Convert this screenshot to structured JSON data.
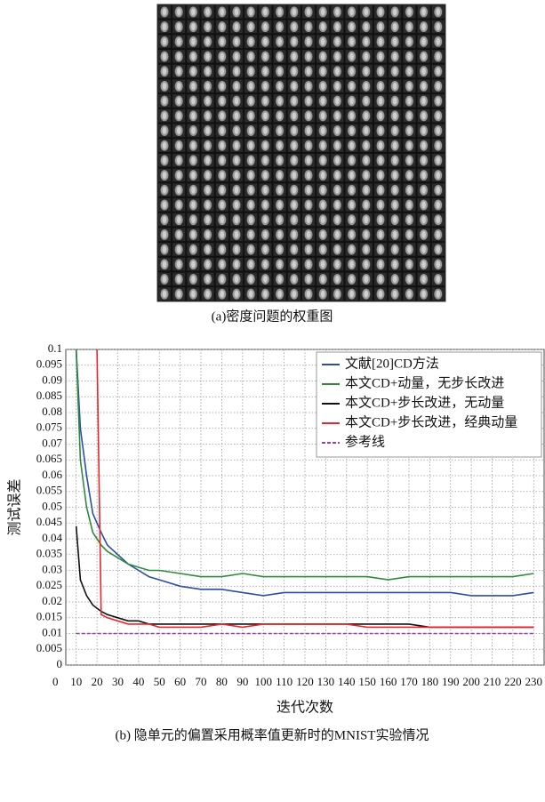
{
  "figure_a": {
    "caption": "(a)密度问题的权重图"
  },
  "chart_data": {
    "type": "line",
    "caption": "(b) 隐单元的偏置采用概率值更新时的MNIST实验情况",
    "x_label": "迭代次数",
    "y_label": "测试误差",
    "x": [
      10,
      12,
      15,
      18,
      20,
      22,
      25,
      30,
      35,
      40,
      45,
      50,
      60,
      70,
      80,
      90,
      100,
      110,
      120,
      130,
      140,
      150,
      160,
      170,
      180,
      190,
      200,
      210,
      220,
      230
    ],
    "series": [
      {
        "name": "文献[20]CD方法",
        "color": "#2b4ea8",
        "values": [
          0.1,
          0.075,
          0.06,
          0.048,
          0.045,
          0.042,
          0.038,
          0.035,
          0.032,
          0.03,
          0.028,
          0.027,
          0.025,
          0.024,
          0.024,
          0.023,
          0.022,
          0.023,
          0.023,
          0.023,
          0.023,
          0.023,
          0.023,
          0.023,
          0.023,
          0.023,
          0.022,
          0.022,
          0.022,
          0.023
        ]
      },
      {
        "name": "本文CD+动量，无步长改进",
        "color": "#2e8b3a",
        "values": [
          0.1,
          0.065,
          0.05,
          0.042,
          0.04,
          0.038,
          0.036,
          0.034,
          0.032,
          0.031,
          0.03,
          0.03,
          0.029,
          0.028,
          0.028,
          0.029,
          0.028,
          0.028,
          0.028,
          0.028,
          0.028,
          0.028,
          0.027,
          0.028,
          0.028,
          0.028,
          0.028,
          0.028,
          0.028,
          0.029
        ]
      },
      {
        "name": "本文CD+步长改进，无动量",
        "color": "#111111",
        "values": [
          0.044,
          0.027,
          0.022,
          0.019,
          0.018,
          0.017,
          0.016,
          0.015,
          0.014,
          0.014,
          0.013,
          0.013,
          0.013,
          0.013,
          0.013,
          0.013,
          0.013,
          0.013,
          0.013,
          0.013,
          0.013,
          0.013,
          0.013,
          0.013,
          0.012,
          0.012,
          0.012,
          0.012,
          0.012,
          0.012
        ]
      },
      {
        "name": "本文CD+步长改进，经典动量",
        "color": "#e8262b",
        "values": [
          null,
          null,
          null,
          null,
          0.1,
          0.016,
          0.015,
          0.014,
          0.013,
          0.013,
          0.013,
          0.012,
          0.012,
          0.012,
          0.013,
          0.012,
          0.013,
          0.013,
          0.013,
          0.013,
          0.013,
          0.012,
          0.012,
          0.012,
          0.012,
          0.012,
          0.012,
          0.012,
          0.012,
          0.012
        ]
      },
      {
        "name": "参考线",
        "color": "#a03cb4",
        "dashed": true,
        "values": [
          0.01,
          0.01,
          0.01,
          0.01,
          0.01,
          0.01,
          0.01,
          0.01,
          0.01,
          0.01,
          0.01,
          0.01,
          0.01,
          0.01,
          0.01,
          0.01,
          0.01,
          0.01,
          0.01,
          0.01,
          0.01,
          0.01,
          0.01,
          0.01,
          0.01,
          0.01,
          0.01,
          0.01,
          0.01,
          0.01
        ]
      }
    ],
    "xlim": [
      5,
      235
    ],
    "xticks": [
      0,
      10,
      20,
      30,
      40,
      50,
      60,
      70,
      80,
      90,
      100,
      110,
      120,
      130,
      140,
      150,
      160,
      170,
      180,
      190,
      200,
      210,
      220,
      230
    ],
    "ylim": [
      0,
      0.1
    ],
    "yticks": [
      0.1,
      0.095,
      0.09,
      0.085,
      0.08,
      0.075,
      0.07,
      0.065,
      0.06,
      0.055,
      0.05,
      0.045,
      0.04,
      0.035,
      0.03,
      0.025,
      0.02,
      0.015,
      0.01,
      0.005,
      0
    ],
    "grid": true,
    "legend": "upper-right"
  }
}
